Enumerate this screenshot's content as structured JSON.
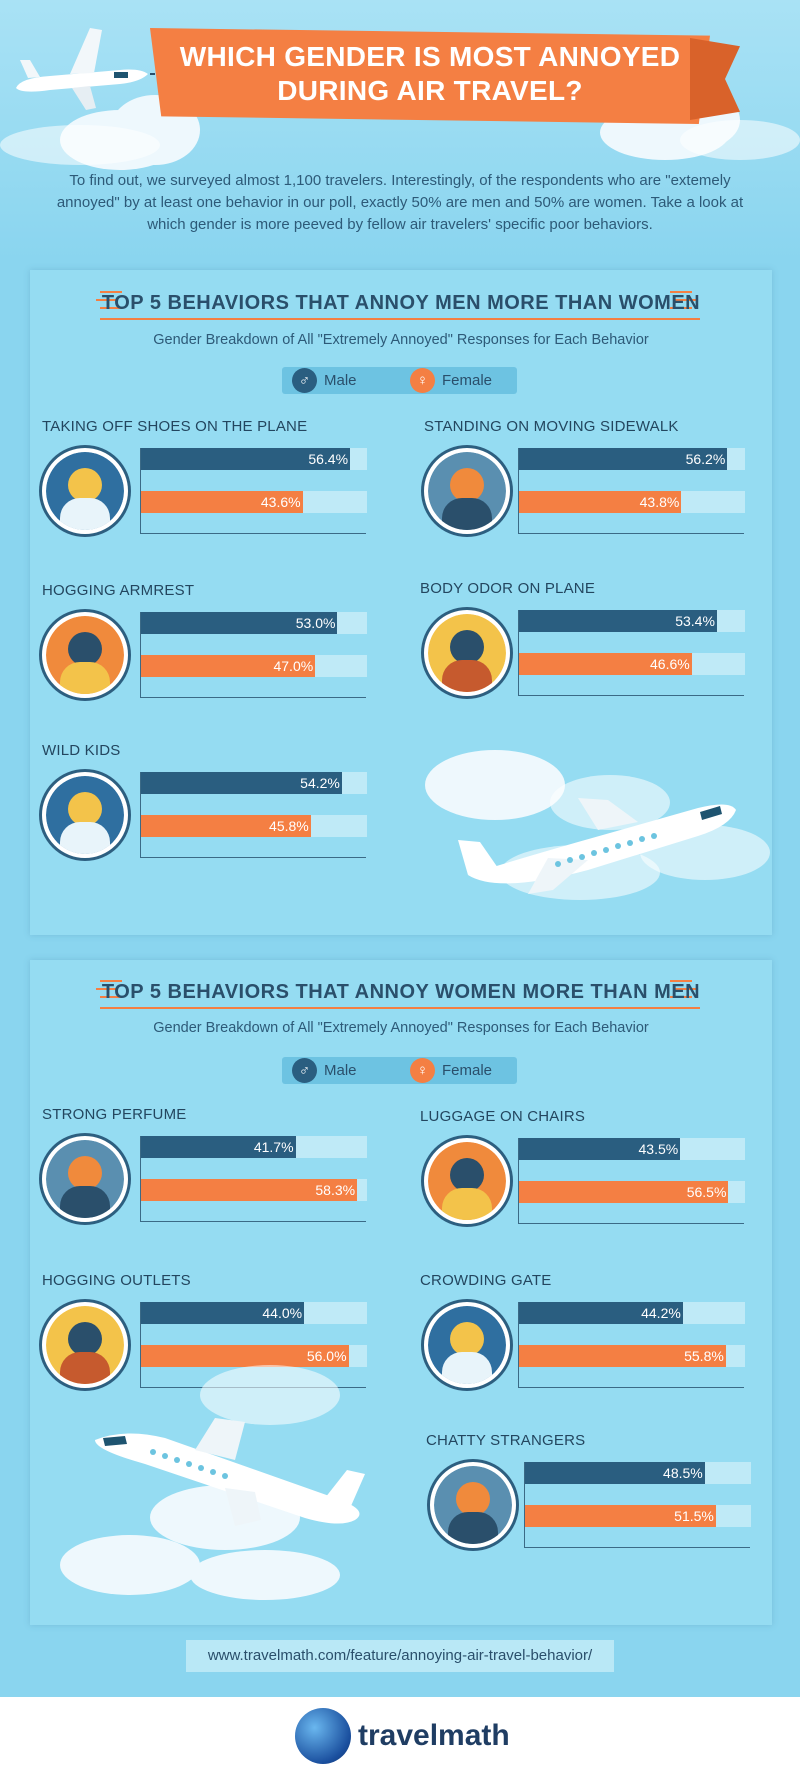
{
  "header": {
    "title_line1": "WHICH GENDER IS MOST ANNOYED",
    "title_line2": "DURING AIR TRAVEL?",
    "intro": "To find out, we surveyed almost 1,100 travelers. Interestingly, of the respondents who are \"extemely annoyed\" by at least one behavior in our poll, exactly 50% are men and 50% are women. Take a look at which gender is more peeved by fellow air travelers' specific poor behaviors."
  },
  "legend": {
    "male": "Male",
    "female": "Female",
    "male_symbol": "♂",
    "female_symbol": "♀"
  },
  "colors": {
    "male": "#2a5e80",
    "female": "#f47f43",
    "banner": "#f47f43"
  },
  "chart_data": [
    {
      "type": "bar",
      "title": "TOP 5 BEHAVIORS THAT ANNOY MEN MORE THAN WOMEN",
      "subtitle": "Gender Breakdown of All \"Extremely Annoyed\" Responses for Each Behavior",
      "categories": [
        "TAKING OFF SHOES ON THE PLANE",
        "STANDING ON MOVING SIDEWALK",
        "HOGGING ARMREST",
        "BODY ODOR ON PLANE",
        "WILD KIDS"
      ],
      "series": [
        {
          "name": "Male",
          "values": [
            56.4,
            56.2,
            53.0,
            53.4,
            54.2
          ],
          "labels": [
            "56.4%",
            "56.2%",
            "53.0%",
            "53.4%",
            "54.2%"
          ]
        },
        {
          "name": "Female",
          "values": [
            43.6,
            43.8,
            47.0,
            46.6,
            45.8
          ],
          "labels": [
            "43.6%",
            "43.8%",
            "47.0%",
            "46.6%",
            "45.8%"
          ]
        }
      ],
      "icons": [
        "shoes-icon",
        "moving-sidewalk-icon",
        "armrest-icon",
        "body-odor-icon",
        "wild-kid-icon"
      ]
    },
    {
      "type": "bar",
      "title": "TOP 5 BEHAVIORS THAT ANNOY WOMEN MORE THAN MEN",
      "subtitle": "Gender Breakdown of All \"Extremely Annoyed\" Responses for Each Behavior",
      "categories": [
        "STRONG PERFUME",
        "LUGGAGE ON CHAIRS",
        "HOGGING OUTLETS",
        "CROWDING GATE",
        "CHATTY STRANGERS"
      ],
      "series": [
        {
          "name": "Male",
          "values": [
            41.7,
            43.5,
            44.0,
            44.2,
            48.5
          ],
          "labels": [
            "41.7%",
            "43.5%",
            "44.0%",
            "44.2%",
            "48.5%"
          ]
        },
        {
          "name": "Female",
          "values": [
            58.3,
            56.5,
            56.0,
            55.8,
            51.5
          ],
          "labels": [
            "58.3%",
            "56.5%",
            "56.0%",
            "55.8%",
            "51.5%"
          ]
        }
      ],
      "icons": [
        "perfume-icon",
        "luggage-icon",
        "outlet-icon",
        "crowd-icon",
        "chatty-icon"
      ]
    }
  ],
  "footer": {
    "url": "www.travelmath.com/feature/annoying-air-travel-behavior/",
    "logo": "travelmath"
  }
}
